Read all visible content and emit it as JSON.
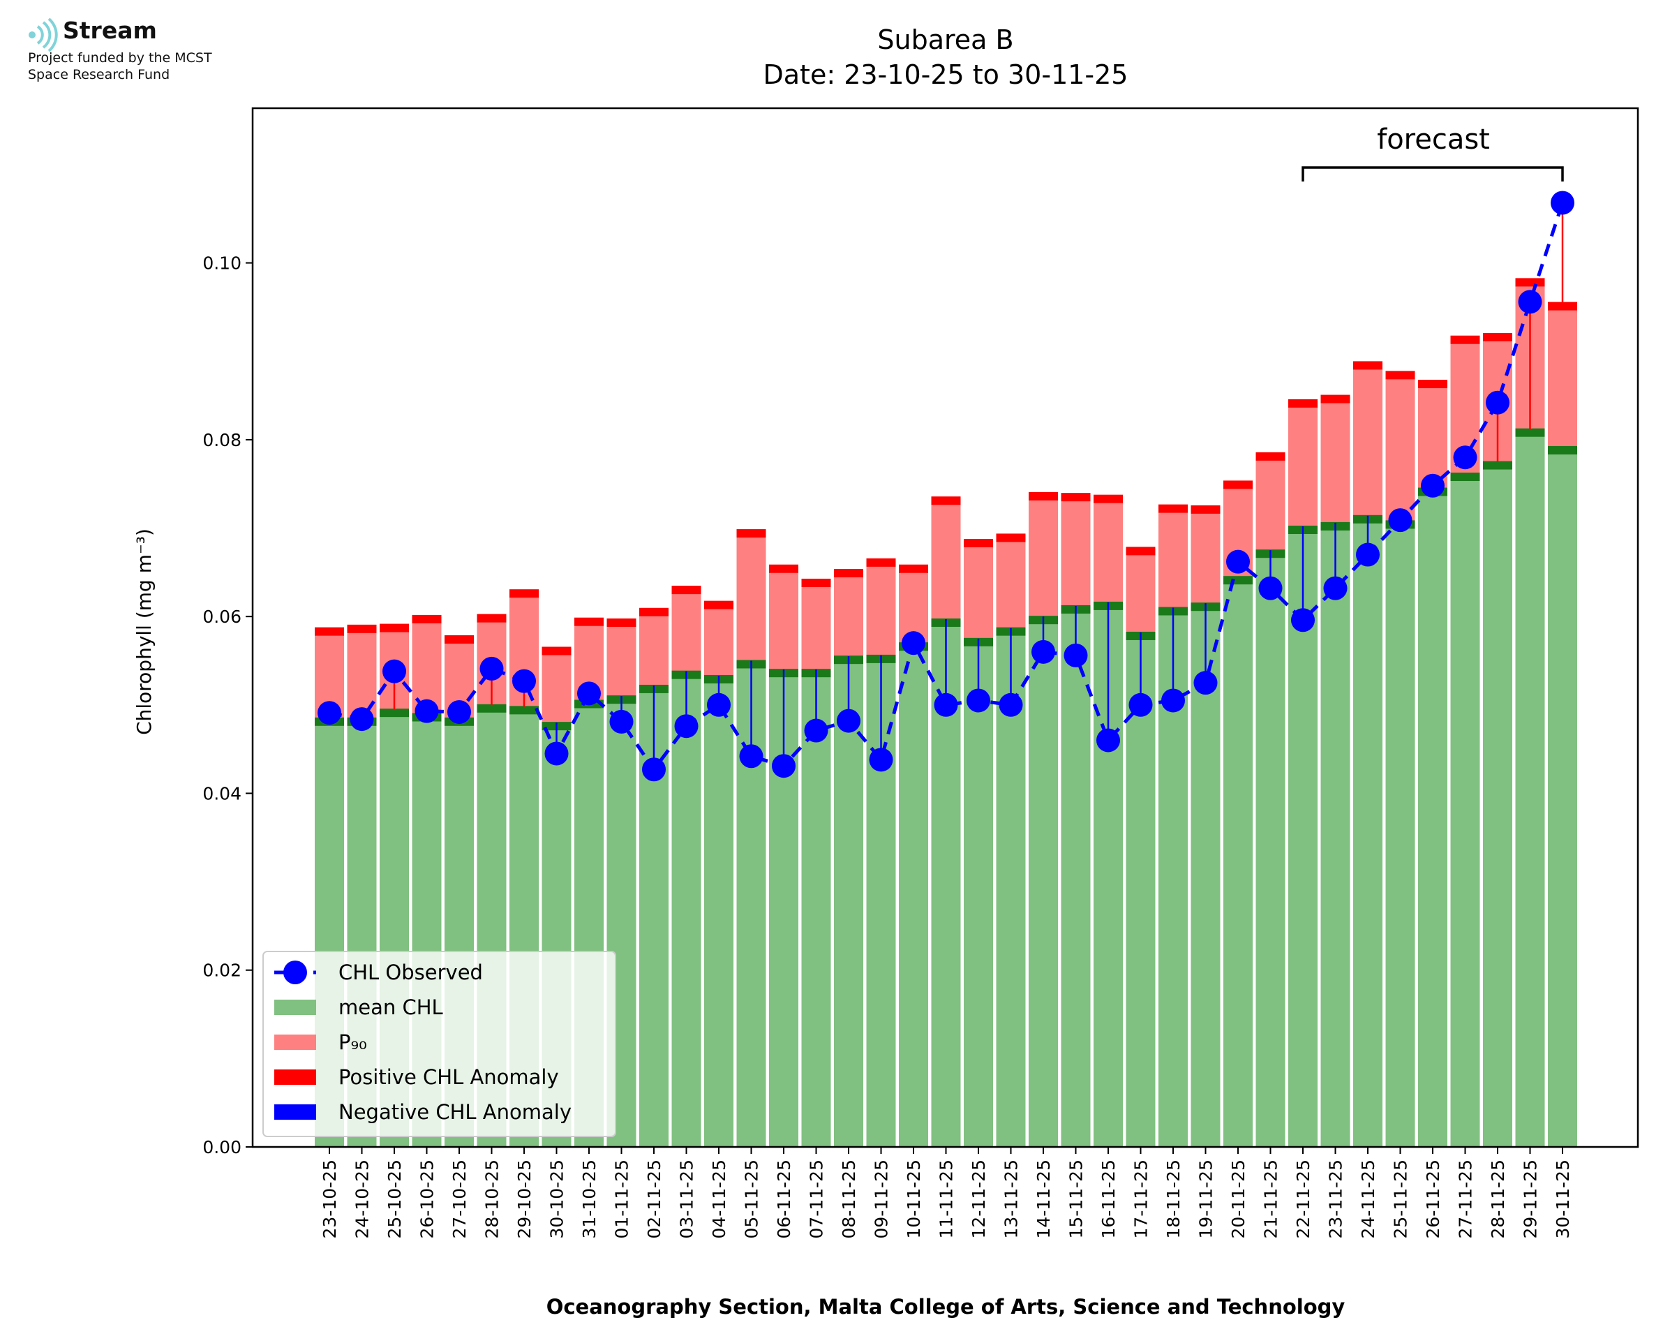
{
  "logo": {
    "name": "Stream",
    "line1": "Project funded by the MCST",
    "line2": "Space Research Fund",
    "icon": "signal-waves-icon",
    "icon_color": "#7fd3d9"
  },
  "chart_data": {
    "type": "bar",
    "title": "Subarea B",
    "subtitle": "Date: 23-10-25 to 30-11-25",
    "xlabel": "Oceanography Section, Malta College of Arts, Science and Technology",
    "ylabel": "Chlorophyll (mg m⁻³)",
    "ylim": [
      0,
      0.1175
    ],
    "yticks": [
      "0.00",
      "0.02",
      "0.04",
      "0.06",
      "0.08",
      "0.10"
    ],
    "annotation": "forecast",
    "forecast_range": [
      "22-11-25",
      "30-11-25"
    ],
    "grid": false,
    "legend_position": "lower-left",
    "categories": [
      "23-10-25",
      "24-10-25",
      "25-10-25",
      "26-10-25",
      "27-10-25",
      "28-10-25",
      "29-10-25",
      "30-10-25",
      "31-10-25",
      "01-11-25",
      "02-11-25",
      "03-11-25",
      "04-11-25",
      "05-11-25",
      "06-11-25",
      "07-11-25",
      "08-11-25",
      "09-11-25",
      "10-11-25",
      "11-11-25",
      "12-11-25",
      "13-11-25",
      "14-11-25",
      "15-11-25",
      "16-11-25",
      "17-11-25",
      "18-11-25",
      "19-11-25",
      "20-11-25",
      "21-11-25",
      "22-11-25",
      "23-11-25",
      "24-11-25",
      "25-11-25",
      "26-11-25",
      "27-11-25",
      "28-11-25",
      "29-11-25",
      "30-11-25"
    ],
    "series": [
      {
        "name": "mean CHL",
        "color": "#80c080",
        "values": [
          0.0485,
          0.0485,
          0.0495,
          0.049,
          0.0485,
          0.05,
          0.0498,
          0.048,
          0.0505,
          0.051,
          0.0522,
          0.0538,
          0.0533,
          0.055,
          0.054,
          0.054,
          0.0555,
          0.0556,
          0.057,
          0.0597,
          0.0575,
          0.0587,
          0.06,
          0.0612,
          0.0616,
          0.0582,
          0.061,
          0.0615,
          0.0645,
          0.0675,
          0.0702,
          0.0706,
          0.0714,
          0.0708,
          0.0745,
          0.0762,
          0.0775,
          0.0812,
          0.0792
        ]
      },
      {
        "name": "P₉₀",
        "color": "#ff8080",
        "values": [
          0.0587,
          0.059,
          0.0591,
          0.0601,
          0.0578,
          0.0602,
          0.063,
          0.0565,
          0.0598,
          0.0597,
          0.0609,
          0.0634,
          0.0617,
          0.0698,
          0.0658,
          0.0642,
          0.0653,
          0.0665,
          0.0658,
          0.0735,
          0.0687,
          0.0693,
          0.074,
          0.0739,
          0.0737,
          0.0678,
          0.0726,
          0.0725,
          0.0753,
          0.0785,
          0.0845,
          0.085,
          0.0888,
          0.0877,
          0.0867,
          0.0917,
          0.092,
          0.0982,
          0.0955
        ]
      },
      {
        "name": "CHL Observed",
        "color": "#0000ff",
        "values": [
          0.0491,
          0.0484,
          0.0538,
          0.0493,
          0.0492,
          0.0541,
          0.0527,
          0.0445,
          0.0513,
          0.0481,
          0.0427,
          0.0476,
          0.05,
          0.0442,
          0.0431,
          0.0471,
          0.0482,
          0.0438,
          0.057,
          0.05,
          0.0505,
          0.05,
          0.056,
          0.0556,
          0.046,
          0.05,
          0.0505,
          0.0525,
          0.0662,
          0.0632,
          0.0596,
          0.0632,
          0.067,
          0.0709,
          0.0748,
          0.078,
          0.0842,
          0.0956,
          0.1068
        ]
      }
    ],
    "legend": [
      "CHL Observed",
      "mean CHL",
      "P₉₀",
      "Positive CHL Anomaly",
      "Negative CHL Anomaly"
    ],
    "colors": {
      "mean": "#80c080",
      "mean_edge": "#1a7a1a",
      "p90": "#ff8080",
      "p90_edge": "#ff0000",
      "positive_anomaly": "#ff0000",
      "negative_anomaly": "#0000ff",
      "observed": "#0000ff"
    }
  }
}
